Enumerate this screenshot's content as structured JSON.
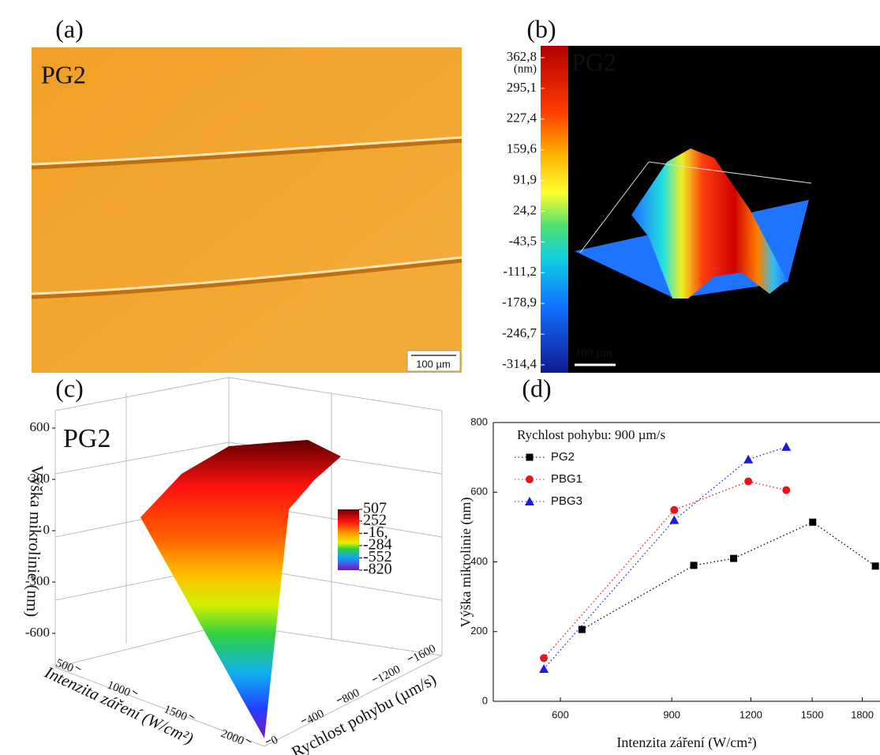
{
  "chart_data": [
    {
      "type": "image",
      "label": "(a)",
      "title": "PG2",
      "scale_bar": "100 µm"
    },
    {
      "type": "surface",
      "label": "(b)",
      "title": "PG2",
      "colorbar_unit": "(nm)",
      "scale_bar": "100 µm",
      "clim": [
        -314.4,
        362.8
      ],
      "colorbar_ticks": [
        {
          "value": 362.8,
          "label": "362,8"
        },
        {
          "value": 295.1,
          "label": "295,1"
        },
        {
          "value": 227.4,
          "label": "227,4"
        },
        {
          "value": 159.6,
          "label": "159,6"
        },
        {
          "value": 91.9,
          "label": "91,9"
        },
        {
          "value": 24.2,
          "label": "24,2"
        },
        {
          "value": -43.5,
          "label": "-43,5"
        },
        {
          "value": -111.2,
          "label": "-111,2"
        },
        {
          "value": -178.9,
          "label": "-178,9"
        },
        {
          "value": -246.7,
          "label": "-246,7"
        },
        {
          "value": -314.4,
          "label": "-314,4"
        }
      ]
    },
    {
      "type": "surface",
      "label": "(c)",
      "title": "PG2",
      "xlabel": "Intenzita záření (W/cm²)",
      "ylabel": "Rychlost pohybu (µm/s)",
      "zlabel": "Výška mikrolinie (nm)",
      "xlim": [
        500,
        2000
      ],
      "xticks": [
        500,
        1000,
        1500,
        2000
      ],
      "ylim": [
        0,
        1600
      ],
      "yticks": [
        0,
        400,
        800,
        1200,
        1600
      ],
      "zlim": [
        -600,
        600
      ],
      "zticks": [
        600,
        300,
        0,
        -300,
        -600
      ],
      "clim": [
        -820,
        507
      ],
      "colorbar_ticks": [
        507,
        252,
        {
          "value": -16,
          "label": "-16,"
        },
        -284,
        -552,
        -820
      ]
    },
    {
      "type": "scatter",
      "label": "(d)",
      "xlabel": "Intenzita záření (W/cm²)",
      "ylabel": "Výška mikrolinie (nm)",
      "legend_title": "Rychlost pohybu: 900 µm/s",
      "legend": "upper left",
      "xscale": "log",
      "xlim": [
        470,
        1920
      ],
      "xticks": [
        600,
        900,
        1200,
        1500,
        1800
      ],
      "ylim": [
        0,
        800
      ],
      "yticks": [
        0,
        200,
        400,
        600,
        800
      ],
      "series": [
        {
          "name": "PG2",
          "color": "#000000",
          "marker": "square",
          "x": [
            649,
            975,
            1127,
            1503,
            1888
          ],
          "values": [
            206,
            390,
            410,
            514,
            388
          ]
        },
        {
          "name": "PBG1",
          "color": "#e8141c",
          "marker": "circle",
          "x": [
            565,
            908,
            1189,
            1365
          ],
          "values": [
            124,
            549,
            631,
            606
          ]
        },
        {
          "name": "PBG3",
          "color": "#1c1cdc",
          "marker": "triangle",
          "x": [
            565,
            908,
            1189,
            1365
          ],
          "values": [
            93,
            520,
            694,
            730
          ]
        }
      ]
    }
  ]
}
